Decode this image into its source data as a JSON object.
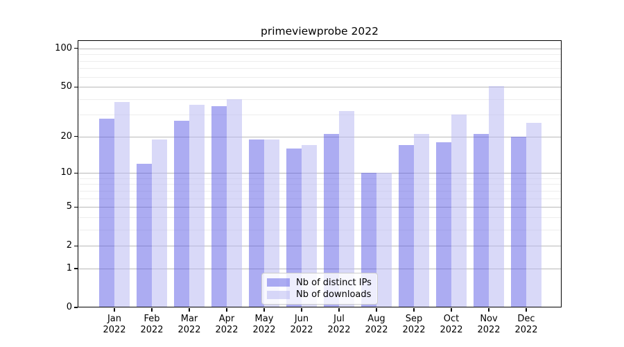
{
  "chart_data": {
    "type": "bar",
    "title": "primeviewprobe 2022",
    "categories": [
      {
        "month": "Jan",
        "year": "2022"
      },
      {
        "month": "Feb",
        "year": "2022"
      },
      {
        "month": "Mar",
        "year": "2022"
      },
      {
        "month": "Apr",
        "year": "2022"
      },
      {
        "month": "May",
        "year": "2022"
      },
      {
        "month": "Jun",
        "year": "2022"
      },
      {
        "month": "Jul",
        "year": "2022"
      },
      {
        "month": "Aug",
        "year": "2022"
      },
      {
        "month": "Sep",
        "year": "2022"
      },
      {
        "month": "Oct",
        "year": "2022"
      },
      {
        "month": "Nov",
        "year": "2022"
      },
      {
        "month": "Dec",
        "year": "2022"
      }
    ],
    "series": [
      {
        "name": "Nb of distinct IPs",
        "color": "rgba(90,90,230,0.5)",
        "values": [
          28,
          12,
          27,
          35,
          19,
          16,
          21,
          10,
          17,
          18,
          21,
          20
        ]
      },
      {
        "name": "Nb of downloads",
        "color": "rgba(185,185,242,0.55)",
        "values": [
          38,
          19,
          36,
          40,
          19,
          17,
          32,
          10,
          21,
          30,
          51,
          26
        ]
      }
    ],
    "yaxis": {
      "scale": "log1p",
      "ticks": [
        0,
        1,
        2,
        5,
        10,
        20,
        50,
        100
      ],
      "minor_gridlines": [
        3,
        4,
        6,
        7,
        8,
        9,
        30,
        40,
        60,
        70,
        80,
        90
      ],
      "ymax": 116,
      "ylim": [
        0,
        116
      ]
    },
    "legend": {
      "position": "lower center",
      "items": [
        "Nb of distinct IPs",
        "Nb of downloads"
      ]
    },
    "grid": "on"
  }
}
